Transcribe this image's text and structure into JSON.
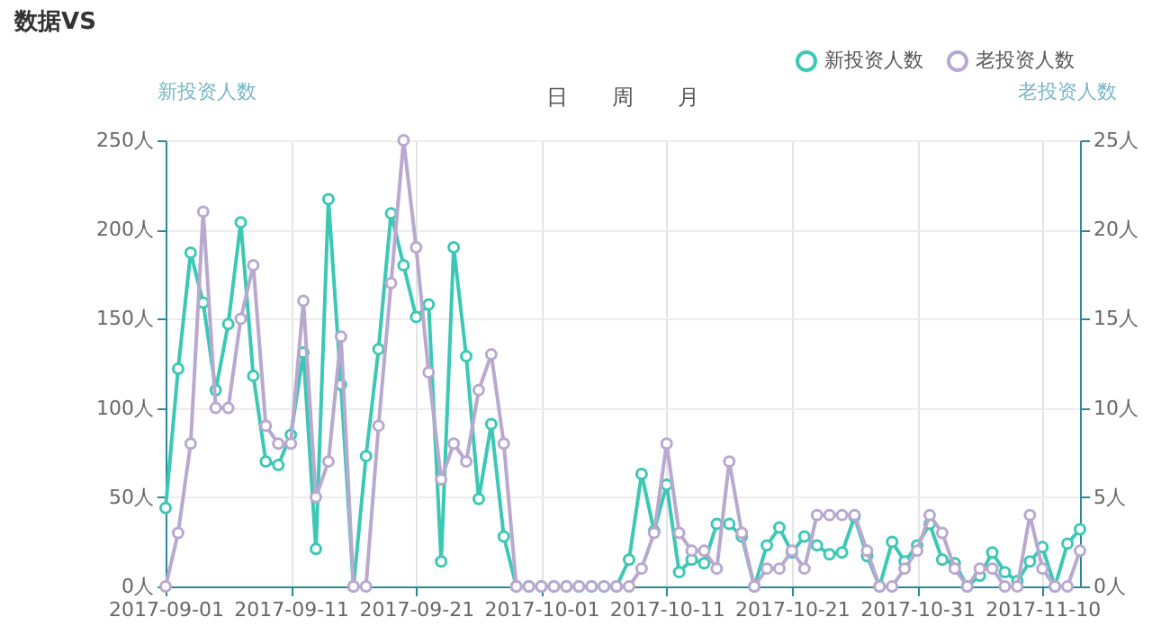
{
  "chart_data": {
    "type": "line",
    "title": "数据VS",
    "ylabel": "新投资人数",
    "y2label": "老投资人数",
    "annotations": [
      "日",
      "周",
      "月"
    ],
    "x": [
      "2017-09-01",
      "2017-09-02",
      "2017-09-03",
      "2017-09-04",
      "2017-09-05",
      "2017-09-06",
      "2017-09-07",
      "2017-09-08",
      "2017-09-09",
      "2017-09-10",
      "2017-09-11",
      "2017-09-12",
      "2017-09-13",
      "2017-09-14",
      "2017-09-15",
      "2017-09-16",
      "2017-09-17",
      "2017-09-18",
      "2017-09-19",
      "2017-09-20",
      "2017-09-21",
      "2017-09-22",
      "2017-09-23",
      "2017-09-24",
      "2017-09-25",
      "2017-09-26",
      "2017-09-27",
      "2017-09-28",
      "2017-09-29",
      "2017-09-30",
      "2017-10-01",
      "2017-10-02",
      "2017-10-03",
      "2017-10-04",
      "2017-10-05",
      "2017-10-06",
      "2017-10-07",
      "2017-10-08",
      "2017-10-09",
      "2017-10-10",
      "2017-10-11",
      "2017-10-12",
      "2017-10-13",
      "2017-10-14",
      "2017-10-15",
      "2017-10-16",
      "2017-10-17",
      "2017-10-18",
      "2017-10-19",
      "2017-10-20",
      "2017-10-21",
      "2017-10-22",
      "2017-10-23",
      "2017-10-24",
      "2017-10-25",
      "2017-10-26",
      "2017-10-27",
      "2017-10-28",
      "2017-10-29",
      "2017-10-30",
      "2017-10-31",
      "2017-11-01",
      "2017-11-02",
      "2017-11-03",
      "2017-11-04",
      "2017-11-05",
      "2017-11-06",
      "2017-11-07",
      "2017-11-08",
      "2017-11-09",
      "2017-11-10",
      "2017-11-11",
      "2017-11-12",
      "2017-11-13"
    ],
    "series": [
      {
        "name": "新投资人数",
        "color": "#3cc8b4",
        "values": [
          44,
          122,
          187,
          159,
          110,
          147,
          204,
          118,
          70,
          68,
          85,
          131,
          21,
          217,
          113,
          0,
          73,
          133,
          209,
          180,
          151,
          158,
          14,
          190,
          129,
          49,
          91,
          28,
          0,
          0,
          0,
          0,
          0,
          0,
          0,
          0,
          0,
          15,
          63,
          31,
          57,
          8,
          15,
          13,
          35,
          35,
          28,
          0,
          23,
          33,
          19,
          28,
          23,
          18,
          19,
          39,
          17,
          0,
          25,
          14,
          23,
          35,
          15,
          13,
          0,
          6,
          19,
          8,
          3,
          14,
          22,
          0,
          24,
          32
        ]
      },
      {
        "name": "老投资人数",
        "color": "#b9a8d0",
        "axis": "y2",
        "values": [
          0,
          3,
          8,
          21,
          10,
          10,
          15,
          18,
          9,
          8,
          8,
          16,
          5,
          7,
          14,
          0,
          0,
          9,
          17,
          25,
          19,
          12,
          6,
          8,
          7,
          11,
          13,
          8,
          0,
          0,
          0,
          0,
          0,
          0,
          0,
          0,
          0,
          0,
          1,
          3,
          8,
          3,
          2,
          2,
          1,
          7,
          3,
          0,
          1,
          1,
          2,
          1,
          4,
          4,
          4,
          4,
          2,
          0,
          0,
          1,
          2,
          4,
          3,
          1,
          0,
          1,
          1,
          0,
          0,
          4,
          1,
          0,
          0,
          2
        ]
      }
    ],
    "xlim": [
      "2017-09-01",
      "2017-11-13"
    ],
    "xticks": [
      "2017-09-01",
      "2017-09-11",
      "2017-09-21",
      "2017-10-01",
      "2017-10-11",
      "2017-10-21",
      "2017-10-31",
      "2017-11-10"
    ],
    "ylim": [
      0,
      250
    ],
    "yticks": [
      {
        "value": 0,
        "label": "0人"
      },
      {
        "value": 50,
        "label": "50人"
      },
      {
        "value": 100,
        "label": "100人"
      },
      {
        "value": 150,
        "label": "150人"
      },
      {
        "value": 200,
        "label": "200人"
      },
      {
        "value": 250,
        "label": "250人"
      }
    ],
    "y2lim": [
      0,
      25
    ],
    "y2ticks": [
      {
        "value": 0,
        "label": "0人"
      },
      {
        "value": 5,
        "label": "5人"
      },
      {
        "value": 10,
        "label": "10人"
      },
      {
        "value": 15,
        "label": "15人"
      },
      {
        "value": 20,
        "label": "20人"
      },
      {
        "value": 25,
        "label": "25人"
      }
    ],
    "grid": true,
    "legend": "top right",
    "marker": "circle",
    "line_style": "solid"
  }
}
